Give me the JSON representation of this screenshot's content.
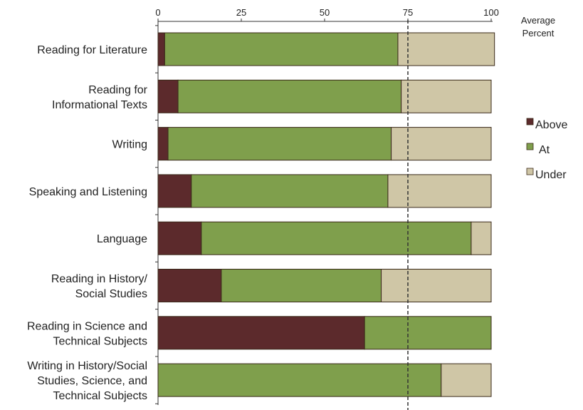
{
  "chart_data": {
    "type": "bar",
    "orientation": "horizontal",
    "stacked": true,
    "title": "",
    "xlabel": "Average Percent",
    "ylabel": "",
    "xlim": [
      0,
      100
    ],
    "xticks": [
      0,
      25,
      50,
      75,
      100
    ],
    "reference_line": {
      "x": 75,
      "style": "dashed"
    },
    "categories": [
      [
        "Reading for Literature"
      ],
      [
        "Reading for",
        "Informational Texts"
      ],
      [
        "Writing"
      ],
      [
        "Speaking and Listening"
      ],
      [
        "Language"
      ],
      [
        "Reading in History/",
        "Social Studies"
      ],
      [
        "Reading in Science and",
        "Technical Subjects"
      ],
      [
        "Writing in History/Social",
        "Studies, Science, and",
        "Technical Subjects"
      ]
    ],
    "series": [
      {
        "name": "Above",
        "color": "#5c2a2c",
        "values": [
          2,
          6,
          3,
          10,
          13,
          19,
          62,
          0
        ]
      },
      {
        "name": "At",
        "color": "#7f9f4c",
        "values": [
          70,
          67,
          67,
          59,
          81,
          48,
          38,
          85
        ]
      },
      {
        "name": "Under",
        "color": "#cfc6a6",
        "values": [
          29,
          27,
          30,
          31,
          6,
          33,
          0,
          15
        ]
      }
    ],
    "legend_position": "right",
    "grid": false
  }
}
